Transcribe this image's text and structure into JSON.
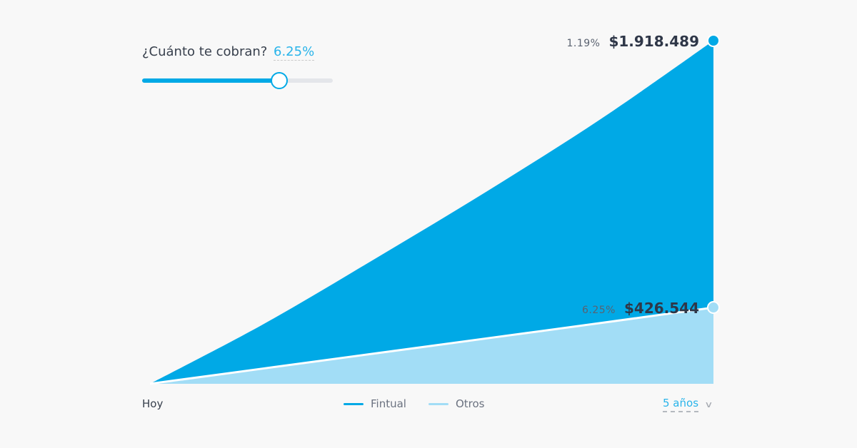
{
  "slider": {
    "question": "¿Cuánto te cobran?",
    "value_label": "6.25%",
    "fill_fraction": 0.72
  },
  "chart_data": {
    "type": "area",
    "x": [
      0,
      1,
      2,
      3,
      4,
      5
    ],
    "series": [
      {
        "name": "Fintual",
        "values": [
          0,
          331000,
          700000,
          1080000,
          1480000,
          1918489
        ],
        "color": "#00a9e6",
        "end_rate": "1.19%",
        "end_value": "$1.918.489"
      },
      {
        "name": "Otros",
        "values": [
          0,
          85000,
          170000,
          255000,
          340000,
          426544
        ],
        "color": "#a2ddf6",
        "end_rate": "6.25%",
        "end_value": "$426.544"
      }
    ],
    "xlabel_start": "Hoy",
    "ylim": [
      0,
      1918489
    ],
    "grid": false,
    "legend": "bottom-center"
  },
  "footer": {
    "start_label": "Hoy",
    "period_label": "5 años",
    "chevron_icon": "chevron-down-icon"
  },
  "colors": {
    "accent": "#00a9e6",
    "secondary": "#a2ddf6",
    "text": "#38404d"
  }
}
